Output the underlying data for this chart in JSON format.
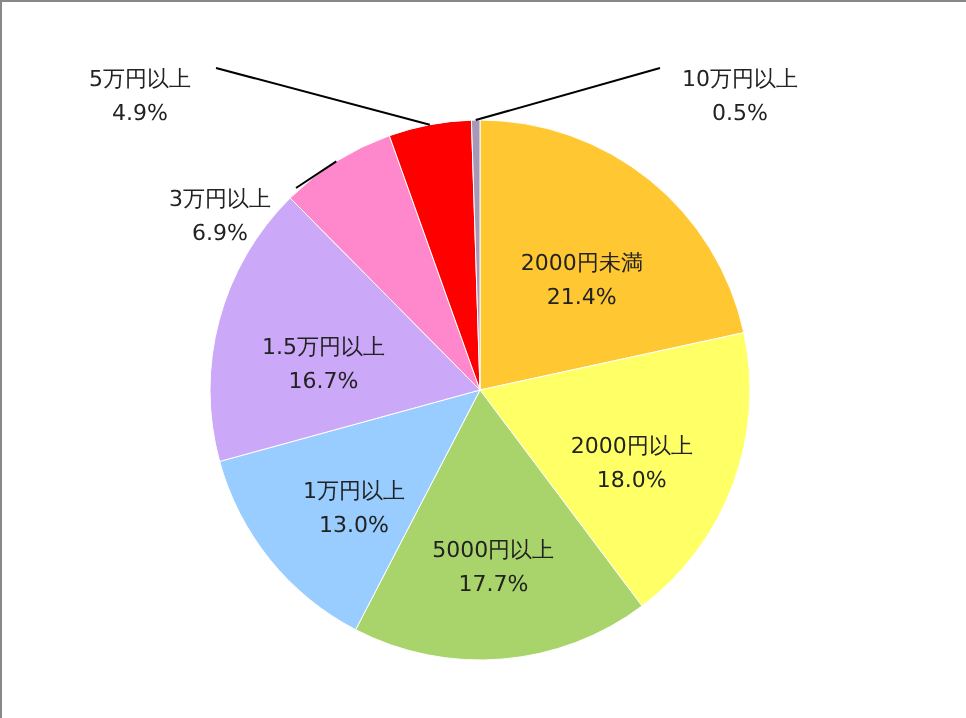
{
  "chart_data": {
    "type": "pie",
    "categories": [
      "2000円未満",
      "2000円以上",
      "5000円以上",
      "1万円以上",
      "1.5万円以上",
      "3万円以上",
      "5万円以上",
      "10万円以上"
    ],
    "values": [
      21.4,
      18.0,
      17.7,
      13.0,
      16.7,
      6.9,
      4.9,
      0.5
    ],
    "value_labels": [
      "21.4%",
      "18.0%",
      "17.7%",
      "13.0%",
      "16.7%",
      "6.9%",
      "4.9%",
      "0.5%"
    ],
    "colors": [
      "#ffc832",
      "#ffff66",
      "#a9d46c",
      "#99ccff",
      "#cca8f8",
      "#ff88cc",
      "#ff0000",
      "#a898b8"
    ]
  }
}
